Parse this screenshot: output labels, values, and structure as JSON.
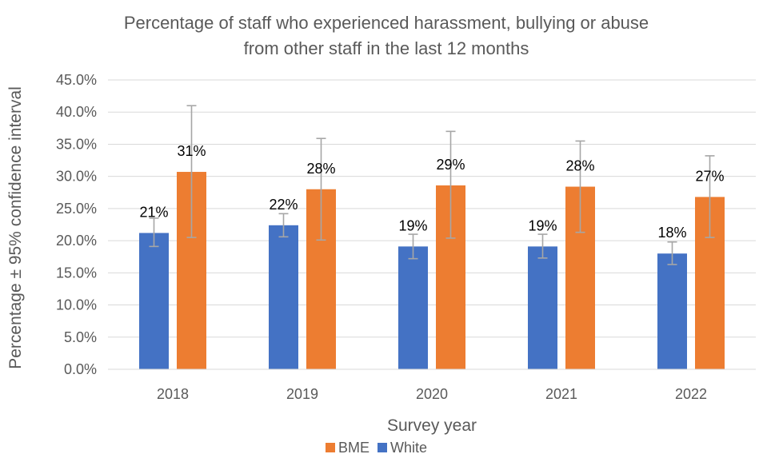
{
  "chart_data": {
    "type": "bar",
    "title_lines": [
      "Percentage of staff who experienced harassment, bullying or abuse",
      "from other staff in the last 12 months"
    ],
    "xlabel": "Survey year",
    "ylabel": "Percentage ± 95% confidence interval",
    "categories": [
      "2018",
      "2019",
      "2020",
      "2021",
      "2022"
    ],
    "ylim": [
      0,
      45
    ],
    "ytick_labels": [
      "0.0%",
      "5.0%",
      "10.0%",
      "15.0%",
      "20.0%",
      "25.0%",
      "30.0%",
      "35.0%",
      "40.0%",
      "45.0%"
    ],
    "grid": true,
    "legend_position": "bottom",
    "legend_order": [
      "BME",
      "White"
    ],
    "series": [
      {
        "name": "White",
        "color": "#4472C4",
        "values": [
          21.2,
          22.4,
          19.1,
          19.1,
          18.0
        ],
        "ci_low": [
          19.1,
          20.6,
          17.2,
          17.3,
          16.3
        ],
        "ci_high": [
          23.5,
          24.2,
          21.0,
          21.0,
          19.8
        ],
        "labels": [
          "21%",
          "22%",
          "19%",
          "19%",
          "18%"
        ]
      },
      {
        "name": "BME",
        "color": "#ED7D31",
        "values": [
          30.7,
          28.0,
          28.6,
          28.4,
          26.8
        ],
        "ci_low": [
          20.5,
          20.1,
          20.4,
          21.3,
          20.5
        ],
        "ci_high": [
          41.0,
          35.9,
          37.0,
          35.5,
          33.2
        ],
        "labels": [
          "31%",
          "28%",
          "29%",
          "28%",
          "27%"
        ]
      }
    ]
  }
}
